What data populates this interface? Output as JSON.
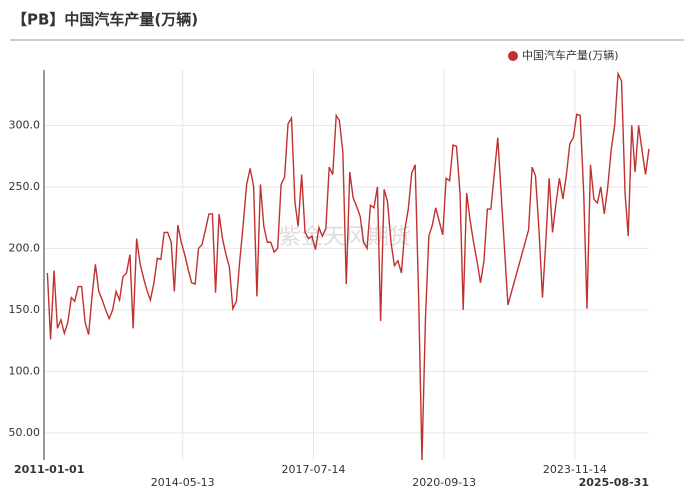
{
  "chart_data": {
    "type": "line",
    "title": "【PB】中国汽车产量(万辆)",
    "watermark": "紫金天风期货",
    "x": [
      "2011-01-31",
      "2011-02-28",
      "2011-03-31",
      "2011-04-30",
      "2011-05-31",
      "2011-06-30",
      "2011-07-31",
      "2011-08-31",
      "2011-09-30",
      "2011-10-31",
      "2011-11-30",
      "2011-12-31",
      "2012-01-31",
      "2012-02-29",
      "2012-03-31",
      "2012-04-30",
      "2012-05-31",
      "2012-06-30",
      "2012-07-31",
      "2012-08-31",
      "2012-09-30",
      "2012-10-31",
      "2012-11-30",
      "2012-12-31",
      "2013-01-31",
      "2013-02-28",
      "2013-03-31",
      "2013-04-30",
      "2013-05-31",
      "2013-06-30",
      "2013-07-31",
      "2013-08-31",
      "2013-09-30",
      "2013-10-31",
      "2013-11-30",
      "2013-12-31",
      "2014-01-31",
      "2014-02-28",
      "2014-03-31",
      "2014-04-30",
      "2014-05-31",
      "2014-06-30",
      "2014-07-31",
      "2014-08-31",
      "2014-09-30",
      "2014-10-31",
      "2014-11-30",
      "2014-12-31",
      "2015-01-31",
      "2015-02-28",
      "2015-03-31",
      "2015-04-30",
      "2015-05-31",
      "2015-06-30",
      "2015-07-31",
      "2015-08-31",
      "2015-09-30",
      "2015-10-31",
      "2015-11-30",
      "2015-12-31",
      "2016-01-31",
      "2016-02-29",
      "2016-03-31",
      "2016-04-30",
      "2016-05-31",
      "2016-06-30",
      "2016-07-31",
      "2016-08-31",
      "2016-09-30",
      "2016-10-31",
      "2016-11-30",
      "2016-12-31",
      "2017-01-31",
      "2017-02-28",
      "2017-03-31",
      "2017-04-30",
      "2017-05-31",
      "2017-06-30",
      "2017-07-31",
      "2017-08-31",
      "2017-09-30",
      "2017-10-31",
      "2017-11-30",
      "2017-12-31",
      "2018-01-31",
      "2018-02-28",
      "2018-03-31",
      "2018-04-30",
      "2018-05-31",
      "2018-06-30",
      "2018-07-31",
      "2018-08-31",
      "2018-09-30",
      "2018-10-31",
      "2018-11-30",
      "2018-12-31",
      "2019-01-31",
      "2019-02-28",
      "2019-03-31",
      "2019-04-30",
      "2019-05-31",
      "2019-06-30",
      "2019-07-31",
      "2019-08-31",
      "2019-09-30",
      "2019-10-31",
      "2019-11-30",
      "2019-12-31",
      "2020-01-31",
      "2020-02-29",
      "2020-03-31",
      "2020-04-30",
      "2020-05-31",
      "2020-06-30",
      "2020-07-31",
      "2020-08-31",
      "2020-09-30",
      "2020-10-31",
      "2020-11-30",
      "2020-12-31",
      "2021-01-31",
      "2021-02-28",
      "2021-03-31",
      "2021-04-30",
      "2021-05-31",
      "2021-06-30",
      "2021-07-31",
      "2021-08-31",
      "2021-09-30",
      "2021-10-31",
      "2021-11-30",
      "2021-12-31",
      "2022-03-31",
      "2022-09-30",
      "2022-10-31",
      "2022-11-30",
      "2022-12-31",
      "2023-01-31",
      "2023-02-28",
      "2023-03-31",
      "2023-04-30",
      "2023-05-31",
      "2023-06-30",
      "2023-07-31",
      "2023-08-31",
      "2023-09-30",
      "2023-10-31",
      "2023-11-30",
      "2023-12-31",
      "2024-01-31",
      "2024-02-29",
      "2024-03-31",
      "2024-04-30",
      "2024-05-31",
      "2024-06-30",
      "2024-07-31",
      "2024-08-31",
      "2024-09-30",
      "2024-10-31",
      "2024-11-30",
      "2024-12-31",
      "2025-01-31",
      "2025-02-28",
      "2025-03-31",
      "2025-04-30",
      "2025-05-31",
      "2025-06-30",
      "2025-07-31",
      "2025-08-31"
    ],
    "series": [
      {
        "name": "中国汽车产量(万辆)",
        "color": "#c0312f",
        "values": [
          180,
          126,
          182,
          135,
          142,
          131,
          140,
          160,
          157,
          169,
          169,
          140,
          130,
          160,
          187,
          165,
          158,
          150,
          143,
          150,
          165,
          158,
          177,
          180,
          195,
          135,
          208,
          188,
          176,
          166,
          158,
          172,
          192,
          191,
          213,
          213,
          205,
          165,
          219,
          205,
          195,
          183,
          172,
          171,
          200,
          203,
          215,
          228,
          228,
          164,
          228,
          208,
          195,
          185,
          151,
          157,
          190,
          220,
          252,
          265,
          250,
          161,
          252,
          218,
          205,
          205,
          197,
          200,
          252,
          258,
          301,
          306,
          237,
          218,
          260,
          213,
          208,
          210,
          199,
          217,
          210,
          216,
          266,
          260,
          308,
          304,
          278,
          171,
          262,
          241,
          234,
          226,
          205,
          200,
          235,
          233,
          250,
          141,
          248,
          238,
          205,
          186,
          190,
          180,
          215,
          232,
          261,
          268,
          159,
          28,
          143,
          210,
          219,
          233,
          222,
          211,
          257,
          255,
          284,
          283,
          245,
          150,
          245,
          223,
          205,
          190,
          172,
          190,
          232,
          232,
          260,
          290,
          154,
          215,
          266,
          259,
          215,
          160,
          203,
          257,
          213,
          237,
          257,
          240,
          260,
          285,
          290,
          309,
          308,
          245,
          151,
          268,
          240,
          237,
          250,
          228,
          250,
          280,
          300,
          342,
          336,
          245,
          210,
          300,
          262,
          300,
          280,
          260,
          281
        ]
      }
    ],
    "xlim": [
      "2011-01-01",
      "2025-08-31"
    ],
    "xticks": [
      "2011-01-01",
      "2014-05-13",
      "2017-07-14",
      "2020-09-13",
      "2023-11-14",
      "2025-08-31"
    ],
    "ylim": [
      28,
      345
    ],
    "yticks": [
      {
        "value": 50,
        "label": "50.00"
      },
      {
        "value": 100,
        "label": "100.0"
      },
      {
        "value": 150,
        "label": "150.0"
      },
      {
        "value": 200,
        "label": "200.0"
      },
      {
        "value": 250,
        "label": "250.0"
      },
      {
        "value": 300,
        "label": "300.0"
      }
    ],
    "grid": true,
    "legend": "top-right"
  }
}
